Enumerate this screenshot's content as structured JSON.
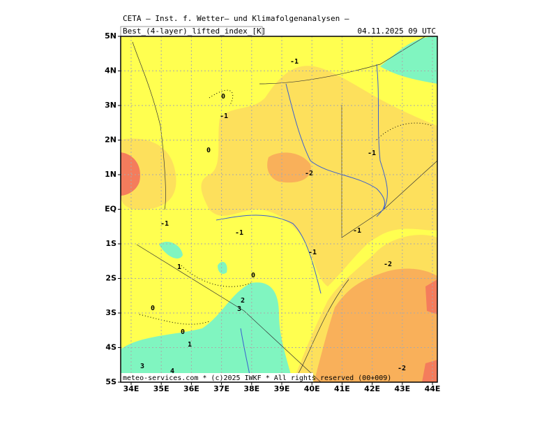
{
  "header": {
    "title": "CETA — Inst. f. Wetter— und Klimafolgenanalysen —",
    "parameter": "Best_(4-layer)_lifted_index_[K]",
    "valid_time": "04.11.2025 09 UTC"
  },
  "map": {
    "lat_labels": [
      "5N",
      "4N",
      "3N",
      "2N",
      "1N",
      "EQ",
      "1S",
      "2S",
      "3S",
      "4S",
      "5S"
    ],
    "lon_labels": [
      "34E",
      "35E",
      "36E",
      "37E",
      "38E",
      "39E",
      "40E",
      "41E",
      "42E",
      "43E",
      "44E"
    ],
    "contour_labels": [
      "-1",
      "0",
      "-1",
      "0",
      "-1",
      "-2",
      "-1",
      "-1",
      "-1",
      "-1",
      "-2",
      "1",
      "0",
      "2",
      "3",
      "0",
      "0",
      "1",
      "3",
      "4",
      "-2"
    ]
  },
  "footer": "meteo-services.com * (c)2025 IWKF * All rights reserved (00+009)"
}
